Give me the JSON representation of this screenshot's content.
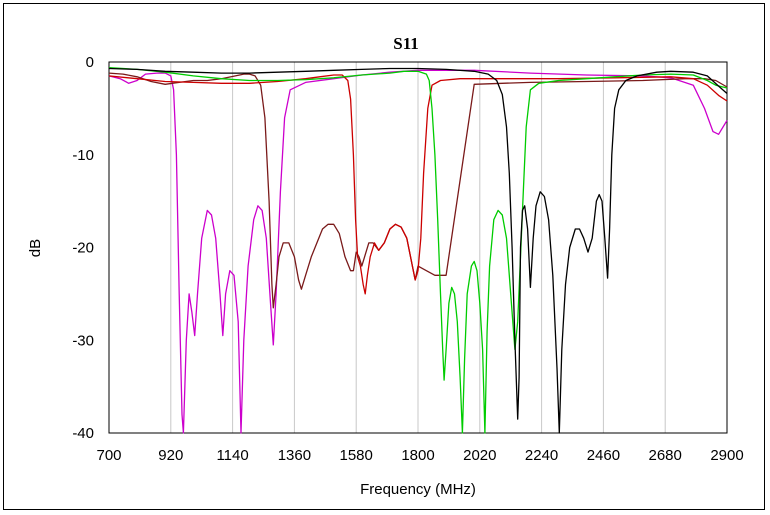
{
  "chart_data": {
    "type": "line",
    "title": "S11",
    "xlabel": "Frequency (MHz)",
    "ylabel": "dB",
    "xlim": [
      700,
      2900
    ],
    "ylim": [
      -40,
      0
    ],
    "xticks": [
      700,
      920,
      1140,
      1360,
      1580,
      1800,
      2020,
      2240,
      2460,
      2680,
      2900
    ],
    "yticks": [
      0,
      -10,
      -20,
      -30,
      -40
    ],
    "grid": "vertical",
    "legend": "none",
    "series": [
      {
        "color": "#cc00cc",
        "points": [
          [
            700,
            -1.5
          ],
          [
            740,
            -1.8
          ],
          [
            770,
            -2.3
          ],
          [
            800,
            -2.0
          ],
          [
            830,
            -1.3
          ],
          [
            870,
            -1.2
          ],
          [
            900,
            -1.2
          ],
          [
            920,
            -1.5
          ],
          [
            930,
            -3
          ],
          [
            940,
            -10
          ],
          [
            950,
            -25
          ],
          [
            960,
            -38
          ],
          [
            965,
            -40
          ],
          [
            975,
            -30
          ],
          [
            985,
            -25
          ],
          [
            995,
            -27
          ],
          [
            1005,
            -29.5
          ],
          [
            1015,
            -25
          ],
          [
            1030,
            -19
          ],
          [
            1050,
            -16
          ],
          [
            1065,
            -16.5
          ],
          [
            1080,
            -19
          ],
          [
            1095,
            -25
          ],
          [
            1105,
            -29.5
          ],
          [
            1115,
            -25
          ],
          [
            1130,
            -22.5
          ],
          [
            1145,
            -23
          ],
          [
            1160,
            -28
          ],
          [
            1170,
            -40
          ],
          [
            1180,
            -30
          ],
          [
            1195,
            -22
          ],
          [
            1215,
            -17
          ],
          [
            1230,
            -15.5
          ],
          [
            1245,
            -16
          ],
          [
            1260,
            -19
          ],
          [
            1275,
            -26
          ],
          [
            1285,
            -30.5
          ],
          [
            1295,
            -25
          ],
          [
            1310,
            -14
          ],
          [
            1325,
            -6
          ],
          [
            1345,
            -3
          ],
          [
            1400,
            -2.2
          ],
          [
            1500,
            -1.8
          ],
          [
            1600,
            -1.4
          ],
          [
            1700,
            -1.1
          ],
          [
            1800,
            -0.9
          ],
          [
            1900,
            -0.9
          ],
          [
            2000,
            -0.9
          ],
          [
            2200,
            -1.2
          ],
          [
            2400,
            -1.4
          ],
          [
            2600,
            -1.5
          ],
          [
            2700,
            -1.7
          ],
          [
            2780,
            -2.5
          ],
          [
            2820,
            -5
          ],
          [
            2850,
            -7.5
          ],
          [
            2870,
            -7.8
          ],
          [
            2900,
            -6.3
          ]
        ]
      },
      {
        "color": "#7a1a1a",
        "points": [
          [
            700,
            -1.2
          ],
          [
            750,
            -1.3
          ],
          [
            800,
            -1.6
          ],
          [
            850,
            -2.1
          ],
          [
            900,
            -2.4
          ],
          [
            950,
            -2.2
          ],
          [
            1000,
            -2.0
          ],
          [
            1050,
            -2.0
          ],
          [
            1100,
            -1.8
          ],
          [
            1150,
            -1.5
          ],
          [
            1180,
            -1.3
          ],
          [
            1200,
            -1.3
          ],
          [
            1220,
            -1.5
          ],
          [
            1240,
            -2.5
          ],
          [
            1255,
            -6
          ],
          [
            1270,
            -15
          ],
          [
            1280,
            -24
          ],
          [
            1285,
            -26.5
          ],
          [
            1295,
            -24
          ],
          [
            1305,
            -21
          ],
          [
            1320,
            -19.5
          ],
          [
            1340,
            -19.5
          ],
          [
            1360,
            -21
          ],
          [
            1375,
            -23.5
          ],
          [
            1385,
            -24.5
          ],
          [
            1400,
            -23
          ],
          [
            1420,
            -21
          ],
          [
            1440,
            -19.5
          ],
          [
            1460,
            -18
          ],
          [
            1480,
            -17.5
          ],
          [
            1500,
            -17.5
          ],
          [
            1520,
            -18.5
          ],
          [
            1540,
            -21
          ],
          [
            1560,
            -22.5
          ],
          [
            1570,
            -22.5
          ],
          [
            1580,
            -20.5
          ],
          [
            1590,
            -21
          ],
          [
            1600,
            -22
          ],
          [
            1610,
            -21
          ],
          [
            1625,
            -19.5
          ],
          [
            1640,
            -19.5
          ],
          [
            1660,
            -20.3
          ],
          [
            1680,
            -19.5
          ],
          [
            1700,
            -18
          ],
          [
            1720,
            -17.5
          ],
          [
            1740,
            -17.8
          ],
          [
            1760,
            -19
          ],
          [
            1780,
            -22
          ],
          [
            1790,
            -23.5
          ],
          [
            1800,
            -22
          ],
          [
            1830,
            -22.5
          ],
          [
            1860,
            -23
          ],
          [
            1900,
            -23
          ],
          [
            2000,
            -2.4
          ],
          [
            2100,
            -2.3
          ],
          [
            2200,
            -2.2
          ],
          [
            2400,
            -2.1
          ],
          [
            2600,
            -2.0
          ],
          [
            2750,
            -1.8
          ],
          [
            2820,
            -1.8
          ],
          [
            2860,
            -2.0
          ],
          [
            2900,
            -2.7
          ]
        ]
      },
      {
        "color": "#cc0000",
        "points": [
          [
            700,
            -1.5
          ],
          [
            800,
            -1.8
          ],
          [
            900,
            -2.1
          ],
          [
            1000,
            -2.2
          ],
          [
            1100,
            -2.3
          ],
          [
            1200,
            -2.3
          ],
          [
            1300,
            -2.1
          ],
          [
            1400,
            -1.8
          ],
          [
            1450,
            -1.6
          ],
          [
            1500,
            -1.4
          ],
          [
            1530,
            -1.4
          ],
          [
            1550,
            -2
          ],
          [
            1560,
            -4
          ],
          [
            1570,
            -10
          ],
          [
            1578,
            -17
          ],
          [
            1585,
            -21
          ],
          [
            1595,
            -22
          ],
          [
            1605,
            -24
          ],
          [
            1612,
            -25
          ],
          [
            1620,
            -23
          ],
          [
            1630,
            -21
          ],
          [
            1645,
            -19.5
          ],
          [
            1660,
            -20.3
          ],
          [
            1680,
            -19.5
          ],
          [
            1700,
            -18
          ],
          [
            1720,
            -17.5
          ],
          [
            1740,
            -17.8
          ],
          [
            1760,
            -19
          ],
          [
            1780,
            -22
          ],
          [
            1790,
            -23.5
          ],
          [
            1800,
            -22.5
          ],
          [
            1810,
            -19
          ],
          [
            1820,
            -12
          ],
          [
            1835,
            -5
          ],
          [
            1850,
            -2.5
          ],
          [
            1880,
            -2.0
          ],
          [
            1950,
            -1.8
          ],
          [
            2100,
            -1.8
          ],
          [
            2300,
            -1.8
          ],
          [
            2500,
            -1.7
          ],
          [
            2700,
            -1.6
          ],
          [
            2780,
            -1.8
          ],
          [
            2830,
            -2.5
          ],
          [
            2870,
            -3.6
          ],
          [
            2900,
            -4.2
          ]
        ]
      },
      {
        "color": "#00cc00",
        "points": [
          [
            700,
            -0.6
          ],
          [
            800,
            -0.8
          ],
          [
            900,
            -1.1
          ],
          [
            1000,
            -1.5
          ],
          [
            1100,
            -1.8
          ],
          [
            1200,
            -2.0
          ],
          [
            1300,
            -2.0
          ],
          [
            1400,
            -1.9
          ],
          [
            1500,
            -1.7
          ],
          [
            1600,
            -1.4
          ],
          [
            1700,
            -1.2
          ],
          [
            1750,
            -1.0
          ],
          [
            1800,
            -1.0
          ],
          [
            1830,
            -1.3
          ],
          [
            1840,
            -2
          ],
          [
            1850,
            -5
          ],
          [
            1860,
            -10
          ],
          [
            1870,
            -17
          ],
          [
            1880,
            -25
          ],
          [
            1888,
            -31
          ],
          [
            1893,
            -34.3
          ],
          [
            1900,
            -31
          ],
          [
            1910,
            -26
          ],
          [
            1920,
            -24.3
          ],
          [
            1930,
            -25
          ],
          [
            1940,
            -28
          ],
          [
            1950,
            -34
          ],
          [
            1958,
            -40
          ],
          [
            1966,
            -32
          ],
          [
            1975,
            -25
          ],
          [
            1990,
            -22
          ],
          [
            2000,
            -21.5
          ],
          [
            2010,
            -22.5
          ],
          [
            2020,
            -26
          ],
          [
            2030,
            -31
          ],
          [
            2038,
            -40
          ],
          [
            2046,
            -29
          ],
          [
            2055,
            -22
          ],
          [
            2070,
            -17
          ],
          [
            2085,
            -16
          ],
          [
            2100,
            -16.5
          ],
          [
            2115,
            -19
          ],
          [
            2130,
            -25
          ],
          [
            2145,
            -31
          ],
          [
            2155,
            -28
          ],
          [
            2165,
            -21
          ],
          [
            2175,
            -14
          ],
          [
            2185,
            -7
          ],
          [
            2200,
            -3
          ],
          [
            2230,
            -2.3
          ],
          [
            2300,
            -2.0
          ],
          [
            2400,
            -1.8
          ],
          [
            2500,
            -1.6
          ],
          [
            2600,
            -1.4
          ],
          [
            2700,
            -1.3
          ],
          [
            2780,
            -1.4
          ],
          [
            2830,
            -2.0
          ],
          [
            2860,
            -2.5
          ],
          [
            2900,
            -2.8
          ]
        ]
      },
      {
        "color": "#000000",
        "points": [
          [
            700,
            -0.7
          ],
          [
            800,
            -0.8
          ],
          [
            900,
            -1.0
          ],
          [
            1000,
            -1.1
          ],
          [
            1100,
            -1.2
          ],
          [
            1200,
            -1.2
          ],
          [
            1300,
            -1.1
          ],
          [
            1400,
            -1.0
          ],
          [
            1500,
            -0.9
          ],
          [
            1600,
            -0.8
          ],
          [
            1700,
            -0.7
          ],
          [
            1800,
            -0.7
          ],
          [
            1900,
            -0.8
          ],
          [
            2000,
            -1.0
          ],
          [
            2050,
            -1.3
          ],
          [
            2080,
            -2.0
          ],
          [
            2100,
            -3.5
          ],
          [
            2115,
            -7
          ],
          [
            2125,
            -12
          ],
          [
            2135,
            -20
          ],
          [
            2145,
            -30
          ],
          [
            2155,
            -38.5
          ],
          [
            2160,
            -34
          ],
          [
            2165,
            -20
          ],
          [
            2172,
            -16
          ],
          [
            2180,
            -15.5
          ],
          [
            2190,
            -18
          ],
          [
            2200,
            -24.3
          ],
          [
            2210,
            -19
          ],
          [
            2220,
            -15.5
          ],
          [
            2235,
            -14
          ],
          [
            2250,
            -14.5
          ],
          [
            2265,
            -17
          ],
          [
            2280,
            -23
          ],
          [
            2295,
            -33
          ],
          [
            2303,
            -40
          ],
          [
            2312,
            -31
          ],
          [
            2325,
            -24
          ],
          [
            2340,
            -20
          ],
          [
            2360,
            -18
          ],
          [
            2375,
            -18
          ],
          [
            2390,
            -19
          ],
          [
            2405,
            -20.5
          ],
          [
            2420,
            -19
          ],
          [
            2435,
            -15
          ],
          [
            2445,
            -14.3
          ],
          [
            2455,
            -15
          ],
          [
            2465,
            -19
          ],
          [
            2475,
            -23.3
          ],
          [
            2482,
            -18
          ],
          [
            2490,
            -10
          ],
          [
            2500,
            -5
          ],
          [
            2515,
            -3
          ],
          [
            2540,
            -2
          ],
          [
            2580,
            -1.5
          ],
          [
            2650,
            -1.1
          ],
          [
            2700,
            -1.0
          ],
          [
            2780,
            -1.1
          ],
          [
            2830,
            -1.5
          ],
          [
            2870,
            -2.6
          ],
          [
            2900,
            -3.4
          ]
        ]
      }
    ]
  }
}
